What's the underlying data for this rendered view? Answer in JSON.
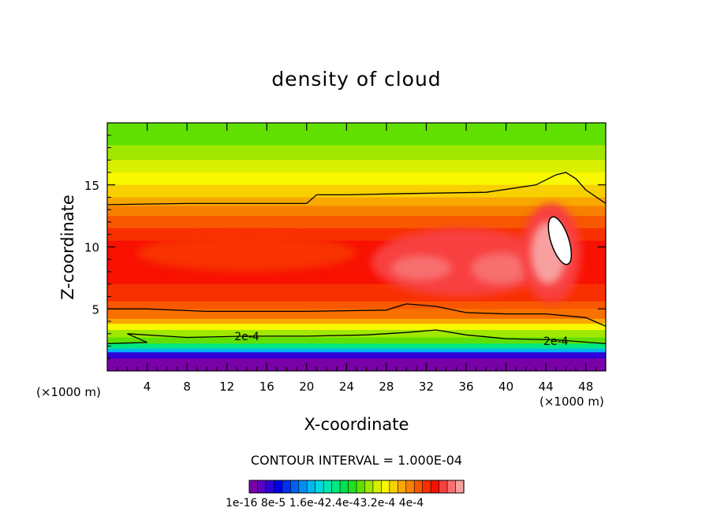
{
  "chart_data": {
    "type": "heatmap",
    "title": "density of cloud",
    "xlabel": "X-coordinate",
    "ylabel": "Z-coordinate",
    "x_unit_label": "(×1000 m)",
    "x_ticks": [
      4,
      8,
      12,
      16,
      20,
      24,
      28,
      32,
      36,
      40,
      44,
      48
    ],
    "y_ticks": [
      5,
      10,
      15
    ],
    "xlim": [
      0,
      50
    ],
    "ylim": [
      0,
      20
    ],
    "contour_interval_text": "CONTOUR INTERVAL = 1.000E-04",
    "contour_labels": [
      {
        "text": "2e-4",
        "x": 14,
        "z": 2.8
      },
      {
        "text": "2e-4",
        "x": 45,
        "z": 2.4
      }
    ],
    "colorbar": {
      "label_text": "1e-16 8e-5 1.6e-42.4e-43.2e-4 4e-4",
      "colors": [
        "#7a00a8",
        "#5a00c0",
        "#3000d8",
        "#0000e8",
        "#0030f0",
        "#0060f0",
        "#0090f0",
        "#00b8f0",
        "#00d8e0",
        "#00e8b0",
        "#00e880",
        "#00e050",
        "#20e020",
        "#60e000",
        "#a0e800",
        "#d8f000",
        "#f8f800",
        "#f8d000",
        "#f8a800",
        "#f88000",
        "#f85800",
        "#f83000",
        "#f81000",
        "#f84040",
        "#f87070",
        "#f8a0a0"
      ]
    },
    "bands": [
      {
        "z_top": 1.0,
        "color": "#7a00a8"
      },
      {
        "z_top": 1.5,
        "color": "#3000d8"
      },
      {
        "z_top": 1.8,
        "color": "#00b8f0"
      },
      {
        "z_top": 2.2,
        "color": "#00e880"
      },
      {
        "z_top": 2.7,
        "color": "#60e000"
      },
      {
        "z_top": 3.3,
        "color": "#a0e800"
      },
      {
        "z_top": 3.8,
        "color": "#f8f800"
      },
      {
        "z_top": 4.2,
        "color": "#f8a800"
      },
      {
        "z_top": 5.0,
        "color": "#f87000"
      },
      {
        "z_top": 5.6,
        "color": "#f85800"
      },
      {
        "z_top": 7.0,
        "color": "#f83000"
      },
      {
        "z_top": 10.5,
        "color": "#f81000"
      },
      {
        "z_top": 11.5,
        "color": "#f83000"
      },
      {
        "z_top": 12.5,
        "color": "#f85800"
      },
      {
        "z_top": 13.3,
        "color": "#f88000"
      },
      {
        "z_top": 14.0,
        "color": "#f8a800"
      },
      {
        "z_top": 15.0,
        "color": "#f8d000"
      },
      {
        "z_top": 16.0,
        "color": "#f8f800"
      },
      {
        "z_top": 17.0,
        "color": "#d8f000"
      },
      {
        "z_top": 18.2,
        "color": "#a0e800"
      },
      {
        "z_top": 20.0,
        "color": "#60e000"
      }
    ],
    "highlights": [
      {
        "x": 3.0,
        "z": 8.0,
        "w": 22,
        "h": 3.0,
        "color": "#f83000"
      },
      {
        "x": 26.5,
        "z": 6.0,
        "w": 18,
        "h": 5.5,
        "color": "#f84040"
      },
      {
        "x": 28.5,
        "z": 7.3,
        "w": 6,
        "h": 2.0,
        "color": "#f87070"
      },
      {
        "x": 36.5,
        "z": 7.0,
        "w": 6,
        "h": 2.5,
        "color": "#f87070"
      },
      {
        "x": 41.5,
        "z": 5.5,
        "w": 6,
        "h": 8.0,
        "color": "#f84040"
      },
      {
        "x": 42.5,
        "z": 7.0,
        "w": 3.5,
        "h": 5.0,
        "color": "#f8a0a0"
      }
    ],
    "white_core": {
      "x": 44.5,
      "z": 8.5,
      "w": 1.8,
      "h": 4.0
    },
    "contours": [
      {
        "x": [
          0,
          8,
          16,
          20,
          21,
          24,
          30,
          38,
          43,
          45,
          46,
          47,
          48,
          50
        ],
        "z": [
          13.4,
          13.5,
          13.5,
          13.5,
          14.2,
          14.2,
          14.3,
          14.4,
          15.0,
          15.8,
          16.0,
          15.5,
          14.6,
          13.5
        ]
      },
      {
        "x": [
          0,
          4,
          10,
          20,
          28,
          30,
          33,
          36,
          40,
          44,
          48,
          50
        ],
        "z": [
          5.0,
          5.0,
          4.8,
          4.8,
          4.9,
          5.4,
          5.2,
          4.7,
          4.6,
          4.6,
          4.3,
          3.6
        ]
      },
      {
        "x": [
          0,
          4,
          2,
          8,
          14,
          20,
          26,
          30,
          33,
          36,
          40,
          45,
          50
        ],
        "z": [
          2.2,
          2.3,
          3.0,
          2.7,
          2.8,
          2.8,
          2.9,
          3.1,
          3.3,
          2.9,
          2.6,
          2.5,
          2.2
        ]
      }
    ]
  }
}
